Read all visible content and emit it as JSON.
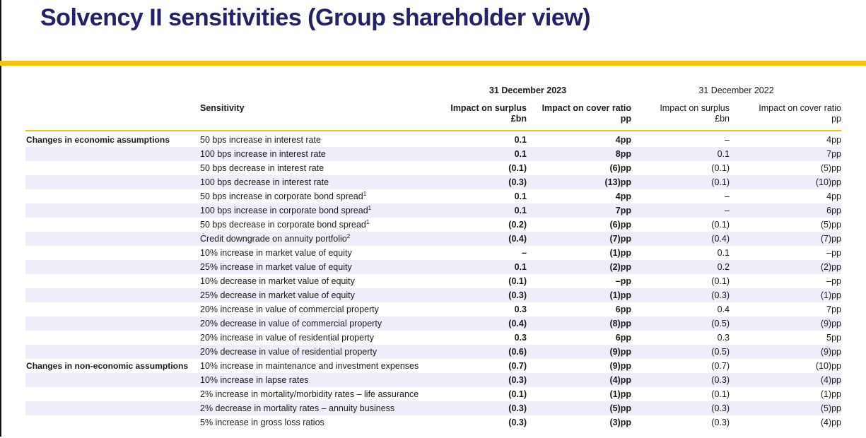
{
  "title": "Solvency II sensitivities (Group shareholder view)",
  "colors": {
    "accent_yellow": "#F2C40D",
    "title_navy": "#232268",
    "alt_row_background": "#EDEEF8",
    "text": "#1A1A1A"
  },
  "table": {
    "sensitivity_header": "Sensitivity",
    "period_headers": [
      {
        "label": "31 December 2023"
      },
      {
        "label": "31 December 2022"
      }
    ],
    "column_headers": [
      {
        "text": "Impact on surplus\n£bn"
      },
      {
        "text": "Impact on cover ratio\npp"
      },
      {
        "text": "Impact on surplus\n£bn"
      },
      {
        "text": "Impact on cover ratio\npp"
      }
    ],
    "rows": [
      {
        "section": "Changes in economic assumptions",
        "label": "50 bps increase in interest rate",
        "sup": "",
        "s23": "0.1",
        "c23": "4pp",
        "s22": "–",
        "c22": "4pp"
      },
      {
        "section": "",
        "label": "100 bps increase in interest rate",
        "sup": "",
        "s23": "0.1",
        "c23": "8pp",
        "s22": "0.1",
        "c22": "7pp"
      },
      {
        "section": "",
        "label": "50 bps decrease in interest rate",
        "sup": "",
        "s23": "(0.1)",
        "c23": "(6)pp",
        "s22": "(0.1)",
        "c22": "(5)pp"
      },
      {
        "section": "",
        "label": "100 bps decrease in interest rate",
        "sup": "",
        "s23": "(0.3)",
        "c23": "(13)pp",
        "s22": "(0.1)",
        "c22": "(10)pp"
      },
      {
        "section": "",
        "label": "50 bps increase in corporate bond spread",
        "sup": "1",
        "s23": "0.1",
        "c23": "4pp",
        "s22": "–",
        "c22": "4pp"
      },
      {
        "section": "",
        "label": "100 bps increase in corporate bond spread",
        "sup": "1",
        "s23": "0.1",
        "c23": "7pp",
        "s22": "–",
        "c22": "6pp"
      },
      {
        "section": "",
        "label": "50 bps decrease in corporate bond spread",
        "sup": "1",
        "s23": "(0.2)",
        "c23": "(6)pp",
        "s22": "(0.1)",
        "c22": "(5)pp"
      },
      {
        "section": "",
        "label": "Credit downgrade on annuity portfolio",
        "sup": "2",
        "s23": "(0.4)",
        "c23": "(7)pp",
        "s22": "(0.4)",
        "c22": "(7)pp"
      },
      {
        "section": "",
        "label": "10% increase in market value of equity",
        "sup": "",
        "s23": "–",
        "c23": "(1)pp",
        "s22": "0.1",
        "c22": "–pp"
      },
      {
        "section": "",
        "label": "25% increase in market value of equity",
        "sup": "",
        "s23": "0.1",
        "c23": "(2)pp",
        "s22": "0.2",
        "c22": "(2)pp"
      },
      {
        "section": "",
        "label": "10% decrease in market value of equity",
        "sup": "",
        "s23": "(0.1)",
        "c23": "–pp",
        "s22": "(0.1)",
        "c22": "–pp"
      },
      {
        "section": "",
        "label": "25% decrease in market value of equity",
        "sup": "",
        "s23": "(0.3)",
        "c23": "(1)pp",
        "s22": "(0.3)",
        "c22": "(1)pp"
      },
      {
        "section": "",
        "label": "20% increase in value of commercial property",
        "sup": "",
        "s23": "0.3",
        "c23": "6pp",
        "s22": "0.4",
        "c22": "7pp"
      },
      {
        "section": "",
        "label": "20% decrease in value of commercial property",
        "sup": "",
        "s23": "(0.4)",
        "c23": "(8)pp",
        "s22": "(0.5)",
        "c22": "(9)pp"
      },
      {
        "section": "",
        "label": "20% increase in value of residential property",
        "sup": "",
        "s23": "0.3",
        "c23": "6pp",
        "s22": "0.3",
        "c22": "5pp"
      },
      {
        "section": "",
        "label": "20% decrease in value of residential property",
        "sup": "",
        "s23": "(0.6)",
        "c23": "(9)pp",
        "s22": "(0.5)",
        "c22": "(9)pp"
      },
      {
        "section": "Changes in non-economic assumptions",
        "label": "10% increase in maintenance and investment expenses",
        "sup": "",
        "s23": "(0.7)",
        "c23": "(9)pp",
        "s22": "(0.7)",
        "c22": "(10)pp"
      },
      {
        "section": "",
        "label": "10% increase in lapse rates",
        "sup": "",
        "s23": "(0.3)",
        "c23": "(4)pp",
        "s22": "(0.3)",
        "c22": "(4)pp"
      },
      {
        "section": "",
        "label": "2% increase in mortality/morbidity rates – life assurance",
        "sup": "",
        "s23": "(0.1)",
        "c23": "(1)pp",
        "s22": "(0.1)",
        "c22": "(1)pp"
      },
      {
        "section": "",
        "label": "2% decrease in mortality rates – annuity business",
        "sup": "",
        "s23": "(0.3)",
        "c23": "(5)pp",
        "s22": "(0.3)",
        "c22": "(5)pp"
      },
      {
        "section": "",
        "label": "5% increase in gross loss ratios",
        "sup": "",
        "s23": "(0.3)",
        "c23": "(3)pp",
        "s22": "(0.3)",
        "c22": "(4)pp"
      }
    ]
  }
}
